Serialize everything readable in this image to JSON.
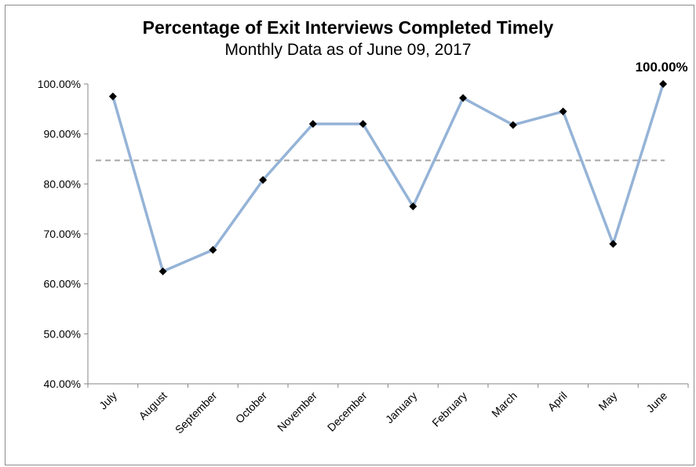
{
  "chart_data": {
    "type": "line",
    "title": "Percentage of Exit Interviews Completed Timely",
    "subtitle": "Monthly Data as of June 09, 2017",
    "categories": [
      "July",
      "August",
      "September",
      "October",
      "November",
      "December",
      "January",
      "February",
      "March",
      "April",
      "May",
      "June"
    ],
    "series": [
      {
        "values": [
          97.5,
          62.5,
          66.8,
          80.8,
          92.0,
          92.0,
          75.5,
          97.2,
          91.8,
          94.5,
          68.0,
          100.0
        ],
        "color": "#95b3d7",
        "marker": "diamond",
        "marker_color": "#000000"
      }
    ],
    "reference_line": {
      "value": 84.7,
      "style": "dashed",
      "color": "#a6a6a6"
    },
    "ylim": [
      40,
      100
    ],
    "yticks": [
      "40.00%",
      "50.00%",
      "60.00%",
      "70.00%",
      "80.00%",
      "90.00%",
      "100.00%"
    ],
    "data_labels": [
      {
        "index": 11,
        "text": "100.00%"
      }
    ],
    "grid": false,
    "legend": "none",
    "xlabel": "",
    "ylabel": ""
  }
}
